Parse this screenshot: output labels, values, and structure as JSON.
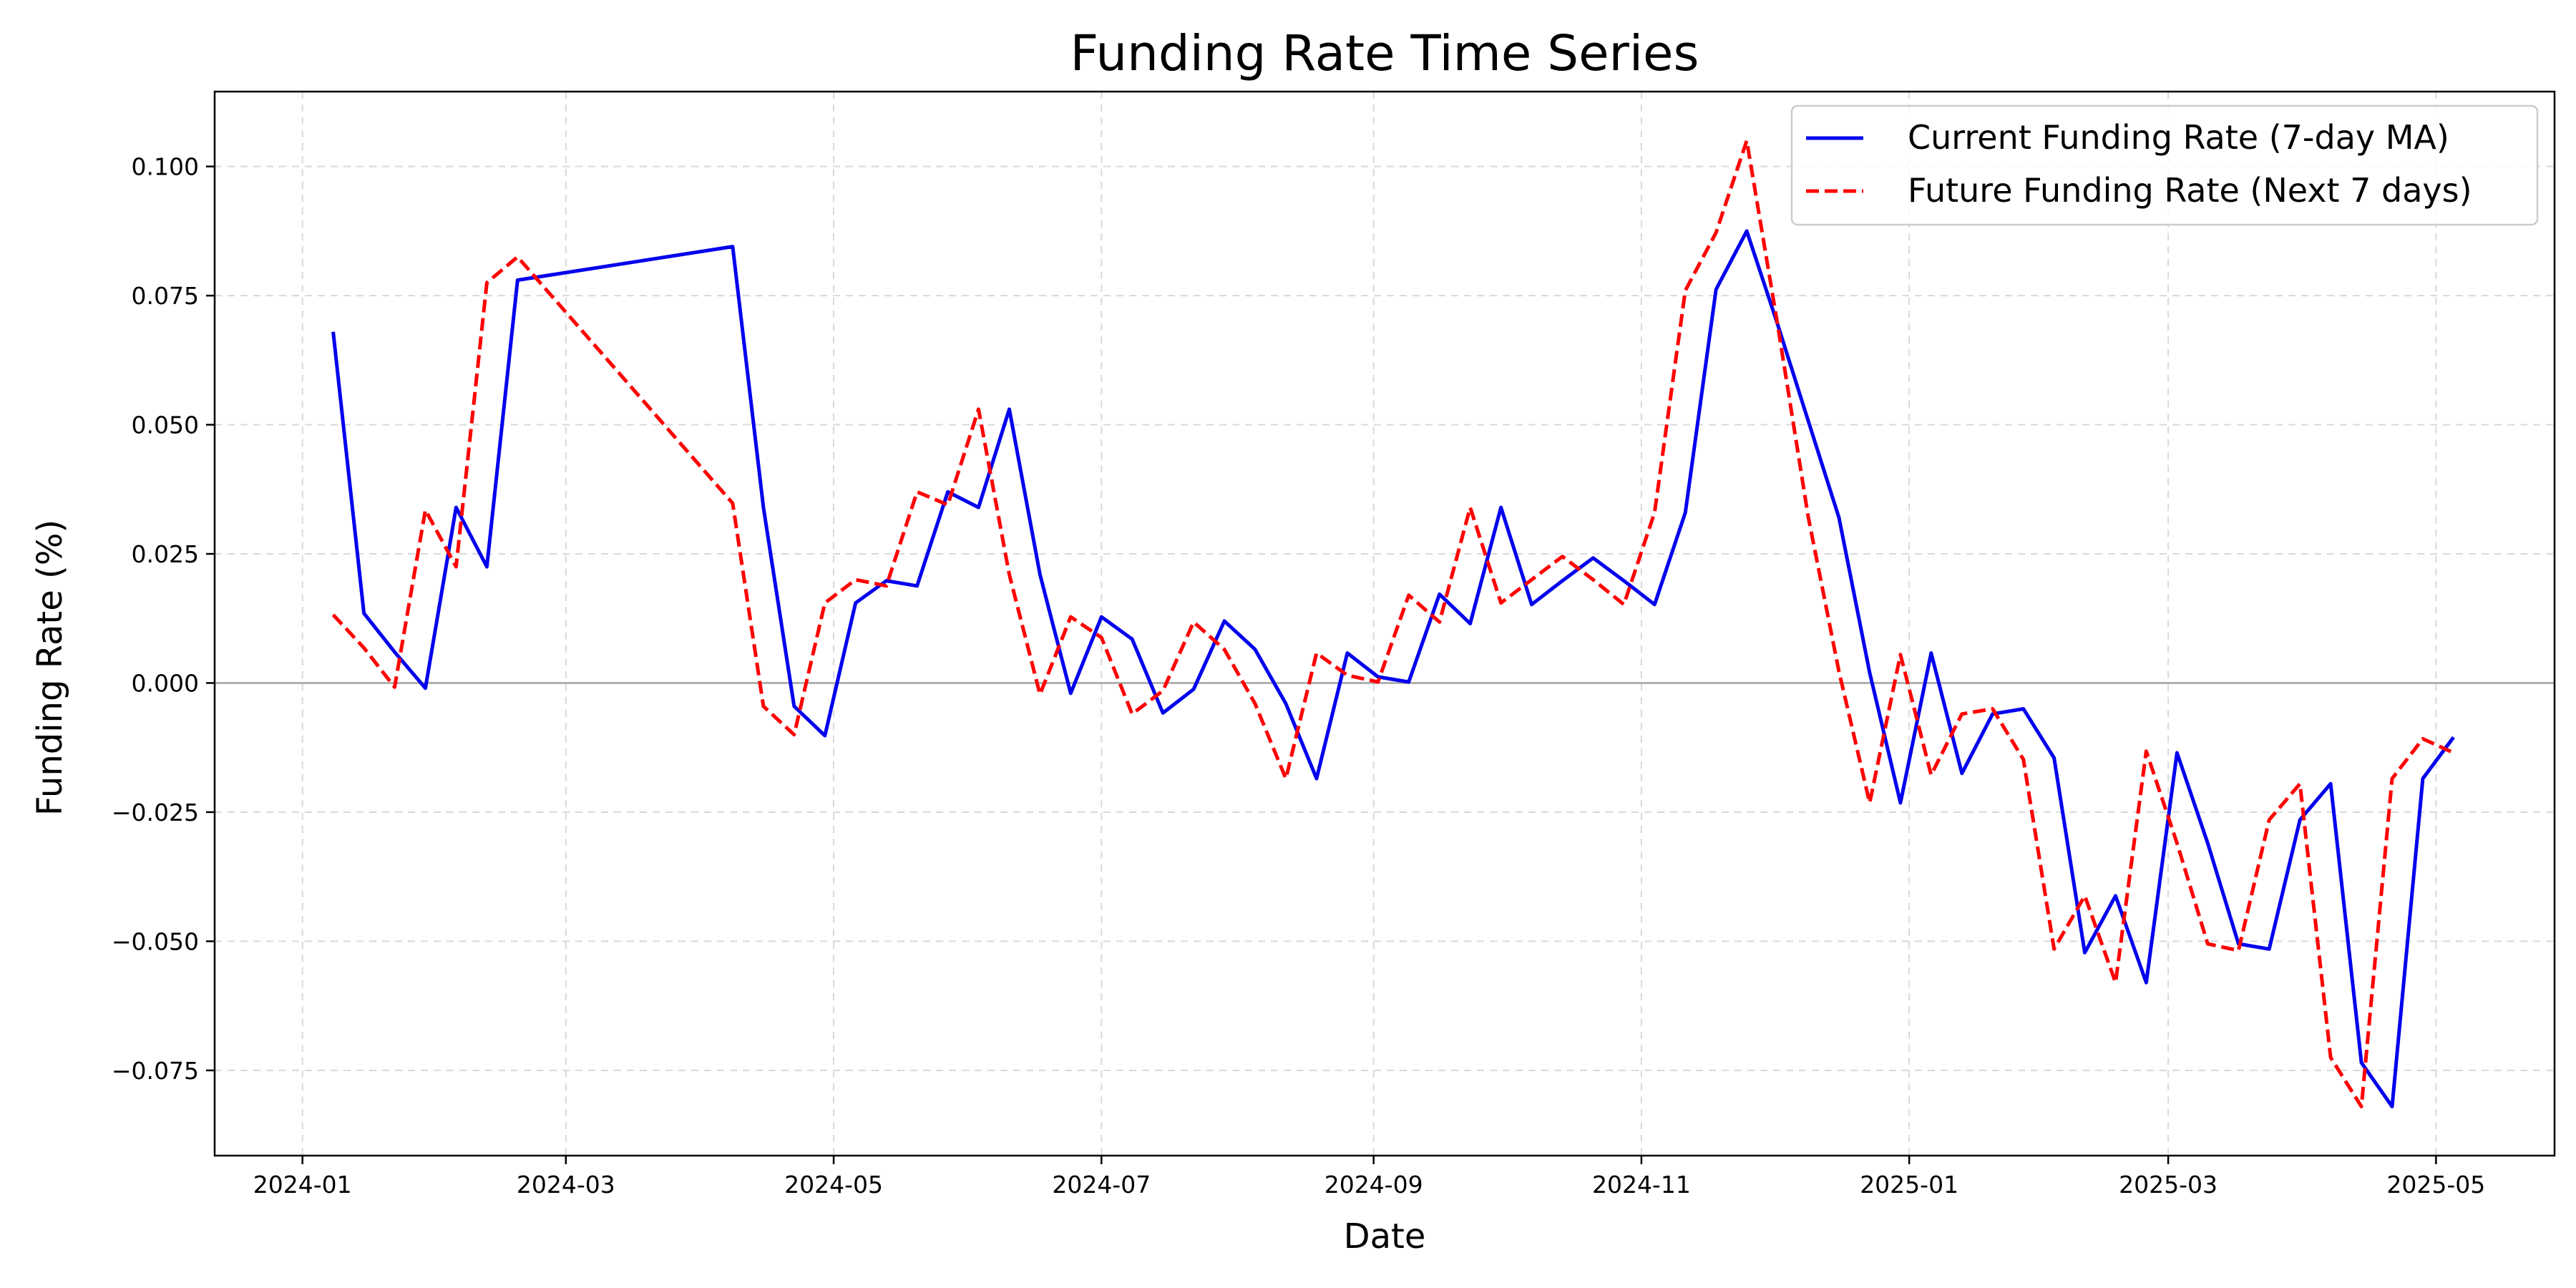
{
  "chart_data": {
    "type": "line",
    "title": "Funding Rate Time Series",
    "xlabel": "Date",
    "ylabel": "Funding Rate (%)",
    "xlim": [
      "2023-12-12",
      "2025-05-28"
    ],
    "ylim": [
      -0.0915,
      0.1145
    ],
    "x_ticks": [
      "2024-01",
      "2024-03",
      "2024-05",
      "2024-07",
      "2024-09",
      "2024-11",
      "2025-01",
      "2025-03",
      "2025-05"
    ],
    "y_ticks": [
      {
        "value": 0.1,
        "label": "0.100"
      },
      {
        "value": 0.075,
        "label": "0.075"
      },
      {
        "value": 0.05,
        "label": "0.050"
      },
      {
        "value": 0.025,
        "label": "0.025"
      },
      {
        "value": 0.0,
        "label": "0.000"
      },
      {
        "value": -0.025,
        "label": "−0.025"
      },
      {
        "value": -0.05,
        "label": "−0.050"
      },
      {
        "value": -0.075,
        "label": "−0.075"
      }
    ],
    "grid": true,
    "zero_line": true,
    "legend_position": "top-right",
    "series": [
      {
        "name": "Current Funding Rate (7-day MA)",
        "color": "#0000ee",
        "style": "solid",
        "points": [
          [
            "2024-01-08",
            0.068
          ],
          [
            "2024-01-15",
            0.0135
          ],
          [
            "2024-01-22",
            0.006
          ],
          [
            "2024-01-29",
            -0.001
          ],
          [
            "2024-02-05",
            0.034
          ],
          [
            "2024-02-12",
            0.0225
          ],
          [
            "2024-02-19",
            0.078
          ],
          [
            "2024-04-08",
            0.0845
          ],
          [
            "2024-04-15",
            0.034
          ],
          [
            "2024-04-22",
            -0.0045
          ],
          [
            "2024-04-29",
            -0.0102
          ],
          [
            "2024-05-06",
            0.0155
          ],
          [
            "2024-05-13",
            0.0198
          ],
          [
            "2024-05-20",
            0.0188
          ],
          [
            "2024-05-27",
            0.037
          ],
          [
            "2024-06-03",
            0.034
          ],
          [
            "2024-06-10",
            0.053
          ],
          [
            "2024-06-17",
            0.021
          ],
          [
            "2024-06-24",
            -0.002
          ],
          [
            "2024-07-01",
            0.0128
          ],
          [
            "2024-07-08",
            0.0085
          ],
          [
            "2024-07-15",
            -0.0058
          ],
          [
            "2024-07-22",
            -0.0012
          ],
          [
            "2024-07-29",
            0.012
          ],
          [
            "2024-08-05",
            0.0065
          ],
          [
            "2024-08-12",
            -0.004
          ],
          [
            "2024-08-19",
            -0.0185
          ],
          [
            "2024-08-26",
            0.0058
          ],
          [
            "2024-09-02",
            0.0012
          ],
          [
            "2024-09-09",
            0.0002
          ],
          [
            "2024-09-16",
            0.0172
          ],
          [
            "2024-09-23",
            0.0115
          ],
          [
            "2024-09-30",
            0.034
          ],
          [
            "2024-10-07",
            0.0152
          ],
          [
            "2024-10-14",
            0.0198
          ],
          [
            "2024-10-21",
            0.0242
          ],
          [
            "2024-10-28",
            0.0198
          ],
          [
            "2024-11-04",
            0.0152
          ],
          [
            "2024-11-11",
            0.033
          ],
          [
            "2024-11-18",
            0.0762
          ],
          [
            "2024-11-25",
            0.0875
          ],
          [
            "2024-12-02",
            0.0695
          ],
          [
            "2024-12-16",
            0.032
          ],
          [
            "2024-12-23",
            0.002
          ],
          [
            "2024-12-30",
            -0.0232
          ],
          [
            "2025-01-06",
            0.0058
          ],
          [
            "2025-01-13",
            -0.0175
          ],
          [
            "2025-01-20",
            -0.006
          ],
          [
            "2025-01-27",
            -0.005
          ],
          [
            "2025-02-03",
            -0.0145
          ],
          [
            "2025-02-10",
            -0.0522
          ],
          [
            "2025-02-17",
            -0.0412
          ],
          [
            "2025-02-24",
            -0.058
          ],
          [
            "2025-03-03",
            -0.0135
          ],
          [
            "2025-03-10",
            -0.031
          ],
          [
            "2025-03-17",
            -0.0505
          ],
          [
            "2025-03-24",
            -0.0515
          ],
          [
            "2025-03-31",
            -0.0265
          ],
          [
            "2025-04-07",
            -0.0195
          ],
          [
            "2025-04-14",
            -0.0735
          ],
          [
            "2025-04-21",
            -0.082
          ],
          [
            "2025-04-28",
            -0.0185
          ],
          [
            "2025-05-05",
            -0.0105
          ]
        ]
      },
      {
        "name": "Future Funding Rate (Next 7 days)",
        "color": "#ff0000",
        "style": "dashed",
        "points": [
          [
            "2024-01-08",
            0.0132
          ],
          [
            "2024-01-15",
            0.0068
          ],
          [
            "2024-01-22",
            -0.0008
          ],
          [
            "2024-01-29",
            0.0335
          ],
          [
            "2024-02-05",
            0.0225
          ],
          [
            "2024-02-12",
            0.0775
          ],
          [
            "2024-02-19",
            0.0825
          ],
          [
            "2024-04-08",
            0.0348
          ],
          [
            "2024-04-15",
            -0.0045
          ],
          [
            "2024-04-22",
            -0.01
          ],
          [
            "2024-04-29",
            0.0155
          ],
          [
            "2024-05-06",
            0.02
          ],
          [
            "2024-05-13",
            0.0188
          ],
          [
            "2024-05-20",
            0.037
          ],
          [
            "2024-05-27",
            0.0345
          ],
          [
            "2024-06-03",
            0.053
          ],
          [
            "2024-06-10",
            0.021
          ],
          [
            "2024-06-17",
            -0.0022
          ],
          [
            "2024-06-24",
            0.0128
          ],
          [
            "2024-07-01",
            0.0088
          ],
          [
            "2024-07-08",
            -0.006
          ],
          [
            "2024-07-15",
            -0.0015
          ],
          [
            "2024-07-22",
            0.0118
          ],
          [
            "2024-07-29",
            0.0065
          ],
          [
            "2024-08-05",
            -0.004
          ],
          [
            "2024-08-12",
            -0.0185
          ],
          [
            "2024-08-19",
            0.0058
          ],
          [
            "2024-08-26",
            0.0015
          ],
          [
            "2024-09-02",
            0.0002
          ],
          [
            "2024-09-09",
            0.017
          ],
          [
            "2024-09-16",
            0.0118
          ],
          [
            "2024-09-23",
            0.034
          ],
          [
            "2024-09-30",
            0.0155
          ],
          [
            "2024-10-07",
            0.02
          ],
          [
            "2024-10-14",
            0.0245
          ],
          [
            "2024-10-21",
            0.02
          ],
          [
            "2024-10-28",
            0.0152
          ],
          [
            "2024-11-04",
            0.033
          ],
          [
            "2024-11-11",
            0.076
          ],
          [
            "2024-11-18",
            0.0872
          ],
          [
            "2024-11-25",
            0.105
          ],
          [
            "2024-12-02",
            0.0695
          ],
          [
            "2024-12-09",
            0.0322
          ],
          [
            "2024-12-16",
            0.0022
          ],
          [
            "2024-12-23",
            -0.0232
          ],
          [
            "2024-12-30",
            0.0055
          ],
          [
            "2025-01-06",
            -0.0178
          ],
          [
            "2025-01-13",
            -0.006
          ],
          [
            "2025-01-20",
            -0.005
          ],
          [
            "2025-01-27",
            -0.0148
          ],
          [
            "2025-02-03",
            -0.0515
          ],
          [
            "2025-02-10",
            -0.0412
          ],
          [
            "2025-02-17",
            -0.058
          ],
          [
            "2025-02-24",
            -0.0132
          ],
          [
            "2025-03-03",
            -0.031
          ],
          [
            "2025-03-10",
            -0.0505
          ],
          [
            "2025-03-17",
            -0.0518
          ],
          [
            "2025-03-24",
            -0.0265
          ],
          [
            "2025-03-31",
            -0.0195
          ],
          [
            "2025-04-07",
            -0.0725
          ],
          [
            "2025-04-14",
            -0.082
          ],
          [
            "2025-04-21",
            -0.0185
          ],
          [
            "2025-04-28",
            -0.0108
          ],
          [
            "2025-05-05",
            -0.0135
          ]
        ]
      }
    ]
  }
}
